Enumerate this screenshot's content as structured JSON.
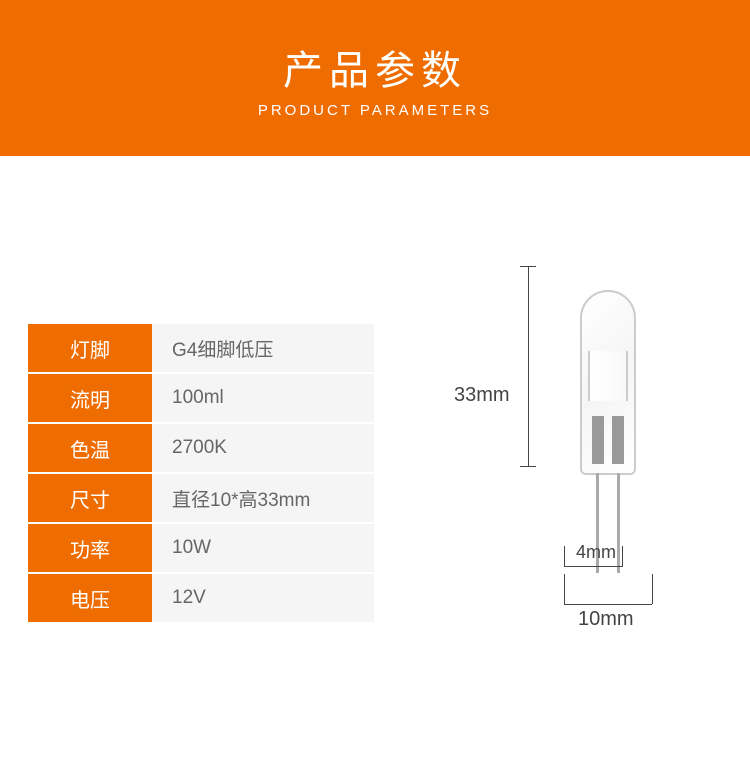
{
  "header": {
    "title": "产品参数",
    "subtitle": "PRODUCT PARAMETERS"
  },
  "colors": {
    "brand": "#ef6c00",
    "value_bg": "#f5f5f5",
    "value_text": "#666666",
    "dim_line": "#444444"
  },
  "specs": [
    {
      "label": "灯脚",
      "value": "G4细脚低压"
    },
    {
      "label": "流明",
      "value": "100ml"
    },
    {
      "label": "色温",
      "value": "2700K"
    },
    {
      "label": "尺寸",
      "value": "直径10*高33mm"
    },
    {
      "label": "功率",
      "value": "10W"
    },
    {
      "label": "电压",
      "value": "12V"
    }
  ],
  "dimensions": {
    "height": "33mm",
    "pin_spacing": "4mm",
    "width": "10mm"
  }
}
